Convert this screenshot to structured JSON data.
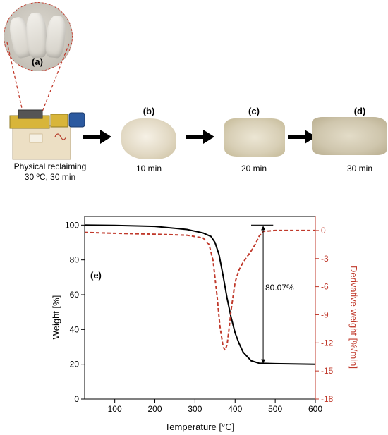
{
  "figure": {
    "panels": {
      "a": {
        "label": "(a)"
      },
      "b": {
        "label": "(b)",
        "caption": "10 min"
      },
      "c": {
        "label": "(c)",
        "caption": "20 min"
      },
      "d": {
        "label": "(d)",
        "caption": "30 min"
      },
      "machine": {
        "caption_line1": "Physical reclaiming",
        "caption_line2": "30 ºC, 30 min"
      }
    },
    "chart_panel_label": "(e)",
    "annotation": "80.07%"
  },
  "chart_data": {
    "type": "line",
    "xlabel": "Temperature [°C]",
    "ylabel": "Weight [%]",
    "y2label": "Derivative weight [%/min]",
    "xlim": [
      25,
      600
    ],
    "ylim": [
      0,
      105
    ],
    "y2lim": [
      -18,
      1.5
    ],
    "xticks": [
      100,
      200,
      300,
      400,
      500,
      600
    ],
    "yticks": [
      0,
      20,
      40,
      60,
      80,
      100
    ],
    "y2ticks": [
      0,
      -3,
      -6,
      -9,
      -12,
      -15,
      -18
    ],
    "grid": false,
    "series": [
      {
        "axis": "left",
        "color": "#000000",
        "style": "solid",
        "x": [
          25,
          100,
          200,
          280,
          320,
          340,
          350,
          360,
          370,
          380,
          390,
          400,
          410,
          420,
          440,
          460,
          500,
          600
        ],
        "y": [
          100,
          99.8,
          99.3,
          97.5,
          95.5,
          93.5,
          90,
          83,
          71,
          58,
          47,
          38,
          32,
          27,
          22,
          20.6,
          20.3,
          20
        ]
      },
      {
        "axis": "right",
        "color": "#c0392b",
        "style": "dashed",
        "x": [
          25,
          100,
          200,
          280,
          320,
          335,
          345,
          355,
          362,
          370,
          375,
          380,
          385,
          390,
          400,
          410,
          420,
          430,
          440,
          450,
          460,
          470,
          500,
          600
        ],
        "y": [
          -0.2,
          -0.3,
          -0.4,
          -0.5,
          -0.8,
          -1.5,
          -3.2,
          -7,
          -10.2,
          -12.4,
          -12.8,
          -12.2,
          -10.5,
          -8.5,
          -5.5,
          -4.2,
          -3.4,
          -2.8,
          -2.2,
          -1.5,
          -0.6,
          -0.1,
          0,
          0
        ]
      }
    ],
    "bracket": {
      "x": 470,
      "y_top": 100,
      "y_bottom": 20,
      "cap_x": [
        440,
        495
      ]
    }
  }
}
